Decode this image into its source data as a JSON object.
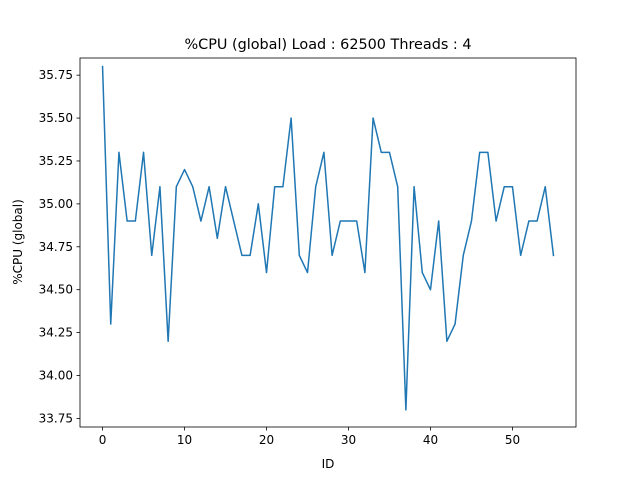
{
  "chart_data": {
    "type": "line",
    "title": "%CPU (global) Load : 62500 Threads : 4",
    "xlabel": "ID",
    "ylabel": "%CPU (global)",
    "xlim": [
      -2.75,
      57.75
    ],
    "ylim": [
      33.7,
      35.85
    ],
    "xticks": [
      0,
      10,
      20,
      30,
      40,
      50
    ],
    "yticks": [
      33.75,
      34.0,
      34.25,
      34.5,
      34.75,
      35.0,
      35.25,
      35.5,
      35.75
    ],
    "ytick_labels": [
      "33.75",
      "34.00",
      "34.25",
      "34.50",
      "34.75",
      "35.00",
      "35.25",
      "35.50",
      "35.75"
    ],
    "grid": false,
    "series": [
      {
        "color": "#1f77b4",
        "x": [
          0,
          1,
          2,
          3,
          4,
          5,
          6,
          7,
          8,
          9,
          10,
          11,
          12,
          13,
          14,
          15,
          16,
          17,
          18,
          19,
          20,
          21,
          22,
          23,
          24,
          25,
          26,
          27,
          28,
          29,
          30,
          31,
          32,
          33,
          34,
          35,
          36,
          37,
          38,
          39,
          40,
          41,
          42,
          43,
          44,
          45,
          46,
          47,
          48,
          49,
          50,
          51,
          52,
          53,
          54,
          55
        ],
        "values": [
          35.8,
          34.3,
          35.3,
          34.9,
          34.9,
          35.3,
          34.7,
          35.1,
          34.2,
          35.1,
          35.2,
          35.1,
          34.9,
          35.1,
          34.8,
          35.1,
          34.9,
          34.7,
          34.7,
          35.0,
          34.6,
          35.1,
          35.1,
          35.5,
          34.7,
          34.6,
          35.1,
          35.3,
          34.7,
          34.9,
          34.9,
          34.9,
          34.6,
          35.5,
          35.3,
          35.3,
          35.1,
          33.8,
          35.1,
          34.6,
          34.5,
          34.9,
          34.2,
          34.3,
          34.7,
          34.9,
          35.3,
          35.3,
          34.9,
          35.1,
          35.1,
          34.7,
          34.9,
          34.9,
          35.1,
          34.7
        ]
      }
    ]
  }
}
